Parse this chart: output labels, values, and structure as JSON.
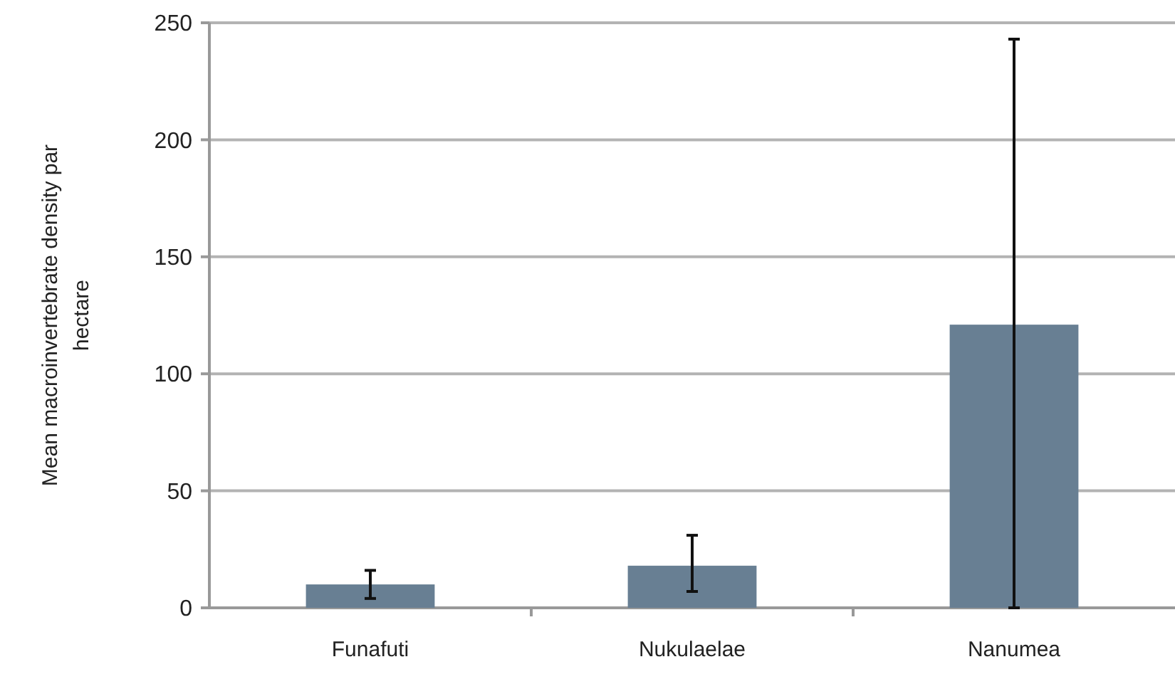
{
  "chart_data": {
    "type": "bar",
    "ylabel": "Mean macroinvertebrate density par hectare",
    "categories": [
      "Funafuti",
      "Nukulaelae",
      "Nanumea"
    ],
    "values": [
      10,
      18,
      121
    ],
    "color": "#687f93",
    "errors": [
      [
        4,
        16
      ],
      [
        7,
        31
      ],
      [
        0,
        243
      ]
    ],
    "ylim": [
      0,
      250
    ],
    "yticks": [
      0,
      50,
      100,
      150,
      200,
      250
    ],
    "grid": "y"
  }
}
